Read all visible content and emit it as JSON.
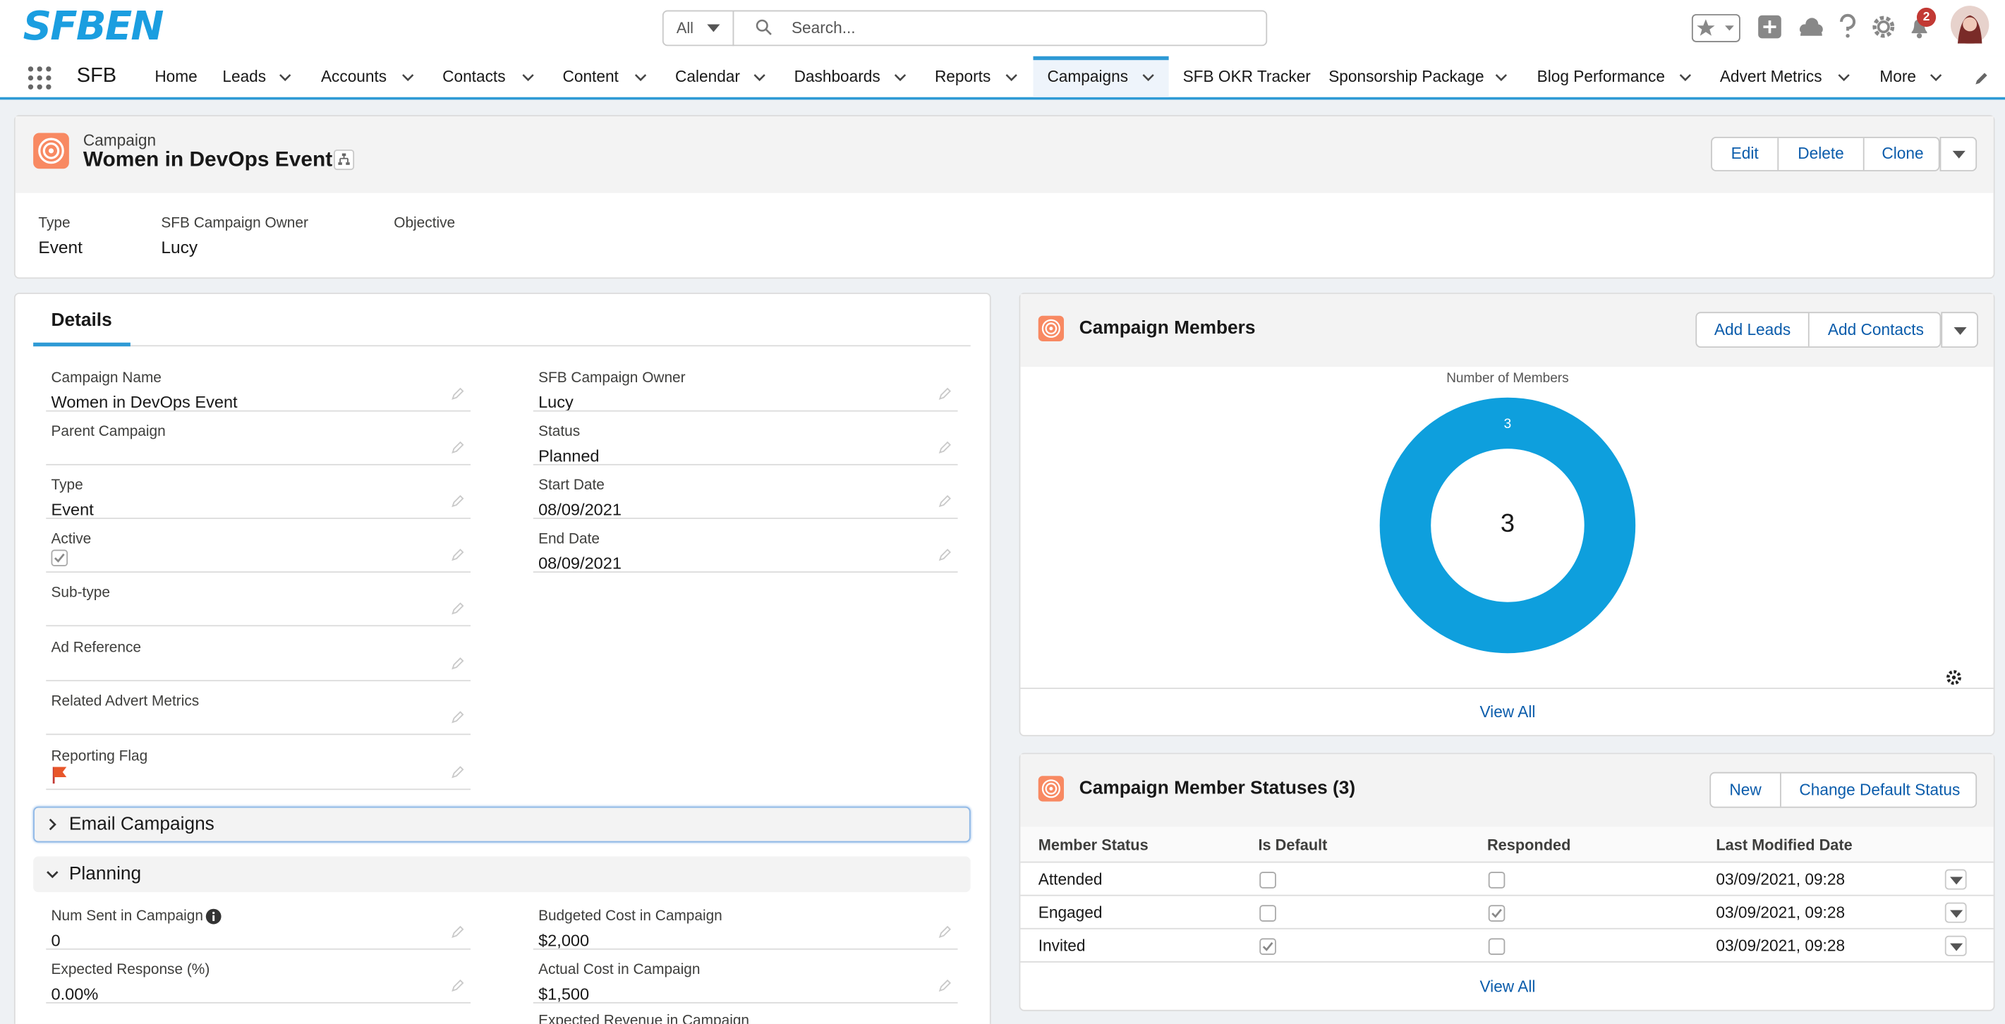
{
  "header": {
    "logo": "SFBEN",
    "search_scope": "All",
    "search_placeholder": "Search...",
    "notifications": 2
  },
  "nav": {
    "app": "SFB",
    "active": 8,
    "items": [
      {
        "label": "Home",
        "menu": false
      },
      {
        "label": "Leads",
        "menu": true
      },
      {
        "label": "Accounts",
        "menu": true
      },
      {
        "label": "Contacts",
        "menu": true
      },
      {
        "label": "Content",
        "menu": true
      },
      {
        "label": "Calendar",
        "menu": true
      },
      {
        "label": "Dashboards",
        "menu": true
      },
      {
        "label": "Reports",
        "menu": true
      },
      {
        "label": "Campaigns",
        "menu": true
      },
      {
        "label": "SFB OKR Tracker",
        "menu": false
      },
      {
        "label": "Sponsorship Package",
        "menu": true
      },
      {
        "label": "Blog Performance",
        "menu": true
      },
      {
        "label": "Advert Metrics",
        "menu": true
      },
      {
        "label": "More",
        "menu": true
      }
    ]
  },
  "record": {
    "object": "Campaign",
    "name": "Women in DevOps Event",
    "actions": [
      "Edit",
      "Delete",
      "Clone"
    ],
    "highlights": [
      {
        "label": "Type",
        "value": "Event"
      },
      {
        "label": "SFB Campaign Owner",
        "value": "Lucy"
      },
      {
        "label": "Objective"
      }
    ]
  },
  "details": {
    "tab": "Details",
    "left": [
      {
        "label": "Campaign Name",
        "value": "Women in DevOps Event"
      },
      {
        "label": "Parent Campaign"
      },
      {
        "label": "Type",
        "value": "Event"
      },
      {
        "label": "Active",
        "checked": true
      },
      {
        "label": "Sub-type"
      },
      {
        "label": "Ad Reference"
      },
      {
        "label": "Related Advert Metrics"
      },
      {
        "label": "Reporting Flag",
        "flag": true
      }
    ],
    "right": [
      {
        "label": "SFB Campaign Owner",
        "value": "Lucy"
      },
      {
        "label": "Status",
        "value": "Planned"
      },
      {
        "label": "Start Date",
        "value": "08/09/2021"
      },
      {
        "label": "End Date",
        "value": "08/09/2021"
      }
    ],
    "sections": [
      {
        "title": "Email Campaigns",
        "expanded": false
      },
      {
        "title": "Planning",
        "expanded": true
      }
    ],
    "planning_left": [
      {
        "label": "Num Sent in Campaign",
        "value": "0",
        "info": true
      },
      {
        "label": "Expected Response (%)",
        "value": "0.00%"
      }
    ],
    "planning_right": [
      {
        "label": "Budgeted Cost in Campaign",
        "value": "$2,000"
      },
      {
        "label": "Actual Cost in Campaign",
        "value": "$1,500"
      },
      {
        "label": "Expected Revenue in Campaign"
      }
    ]
  },
  "members": {
    "title": "Campaign Members",
    "actions": [
      "Add Leads",
      "Add Contacts"
    ],
    "chart": {
      "type": "donut",
      "title": "Number of Members",
      "total": 3,
      "values": [
        3
      ],
      "color": "#0e9fdd"
    },
    "view_all": "View All"
  },
  "statuses": {
    "title": "Campaign Member Statuses (3)",
    "actions": [
      "New",
      "Change Default Status"
    ],
    "columns": [
      "Member Status",
      "Is Default",
      "Responded",
      "Last Modified Date"
    ],
    "rows": [
      {
        "status": "Attended",
        "is_default": false,
        "responded": false,
        "modified": "03/09/2021, 09:28"
      },
      {
        "status": "Engaged",
        "is_default": false,
        "responded": true,
        "modified": "03/09/2021, 09:28"
      },
      {
        "status": "Invited",
        "is_default": true,
        "responded": false,
        "modified": "03/09/2021, 09:28"
      }
    ],
    "view_all": "View All"
  }
}
